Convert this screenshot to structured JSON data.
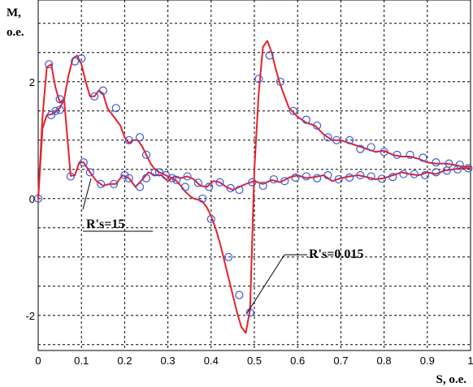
{
  "chart_data": {
    "type": "line",
    "title": "",
    "ylabel_line1": "M,",
    "ylabel_line2": "o.e.",
    "xlabel": "S, o.e.",
    "xlim": [
      0,
      1
    ],
    "ylim": [
      -2.6,
      3.4
    ],
    "grid": true,
    "x_ticks": [
      0,
      0.1,
      0.2,
      0.3,
      0.4,
      0.5,
      0.6,
      0.7,
      0.8,
      0.9,
      1
    ],
    "x_tick_labels": [
      "0",
      "0.1",
      "0.2",
      "0.3",
      "0.4",
      "0.5",
      "0.6",
      "0.7",
      "0.8",
      "0.9",
      "1"
    ],
    "y_ticks": [
      -2,
      0,
      2
    ],
    "y_tick_labels": [
      "-2",
      "0",
      "2"
    ],
    "grid_y": [
      -2.5,
      -1.5,
      -1,
      -0.5,
      0.5,
      1,
      1.5,
      2.5,
      3
    ],
    "series": [
      {
        "name": "R's=15",
        "color": "#e8202a",
        "marker_color": "#3a5bd6",
        "x": [
          0,
          0.01,
          0.02,
          0.035,
          0.05,
          0.06,
          0.075,
          0.085,
          0.095,
          0.105,
          0.12,
          0.135,
          0.15,
          0.165,
          0.18,
          0.195,
          0.21,
          0.225,
          0.24,
          0.255,
          0.27,
          0.285,
          0.3,
          0.315,
          0.33,
          0.345,
          0.36,
          0.375,
          0.39,
          0.405,
          0.42,
          0.435,
          0.45,
          0.465,
          0.48,
          0.5,
          0.52,
          0.54,
          0.56,
          0.58,
          0.6,
          0.62,
          0.64,
          0.66,
          0.68,
          0.7,
          0.72,
          0.74,
          0.76,
          0.78,
          0.8,
          0.82,
          0.84,
          0.86,
          0.88,
          0.9,
          0.92,
          0.94,
          0.96,
          0.98,
          1.0
        ],
        "y": [
          0.0,
          1.2,
          1.43,
          1.45,
          1.55,
          1.7,
          0.39,
          0.4,
          0.62,
          0.62,
          0.45,
          0.3,
          0.22,
          0.25,
          0.25,
          0.4,
          0.35,
          0.2,
          0.32,
          0.45,
          0.4,
          0.4,
          0.3,
          0.38,
          0.35,
          0.38,
          0.33,
          0.22,
          0.2,
          0.3,
          0.28,
          0.2,
          0.15,
          0.2,
          0.25,
          0.3,
          0.25,
          0.32,
          0.28,
          0.36,
          0.4,
          0.35,
          0.37,
          0.4,
          0.3,
          0.35,
          0.38,
          0.4,
          0.37,
          0.33,
          0.35,
          0.4,
          0.45,
          0.42,
          0.4,
          0.45,
          0.42,
          0.48,
          0.5,
          0.52,
          0.52
        ],
        "marker_x": [
          0,
          0.03,
          0.05,
          0.075,
          0.105,
          0.12,
          0.145,
          0.175,
          0.2,
          0.21,
          0.235,
          0.25,
          0.27,
          0.295,
          0.32,
          0.345,
          0.37,
          0.395,
          0.42,
          0.445,
          0.465,
          0.495,
          0.52,
          0.545,
          0.57,
          0.595,
          0.62,
          0.645,
          0.67,
          0.695,
          0.72,
          0.745,
          0.77,
          0.795,
          0.82,
          0.845,
          0.87,
          0.895,
          0.92,
          0.945,
          0.97,
          0.995
        ],
        "marker_y": [
          0.0,
          1.43,
          1.52,
          0.38,
          0.62,
          0.45,
          0.25,
          0.25,
          0.4,
          0.35,
          0.2,
          0.35,
          0.45,
          0.4,
          0.32,
          0.38,
          0.27,
          0.2,
          0.28,
          0.18,
          0.15,
          0.28,
          0.22,
          0.33,
          0.3,
          0.36,
          0.38,
          0.35,
          0.4,
          0.33,
          0.36,
          0.4,
          0.38,
          0.34,
          0.37,
          0.42,
          0.42,
          0.4,
          0.45,
          0.48,
          0.5,
          0.52
        ]
      },
      {
        "name": "R's=0.015",
        "color": "#e8202a",
        "marker_color": "#3a5bd6",
        "x": [
          0,
          0.01,
          0.02,
          0.03,
          0.04,
          0.05,
          0.06,
          0.07,
          0.08,
          0.09,
          0.1,
          0.11,
          0.12,
          0.13,
          0.14,
          0.15,
          0.16,
          0.17,
          0.18,
          0.19,
          0.2,
          0.21,
          0.22,
          0.23,
          0.24,
          0.25,
          0.26,
          0.27,
          0.28,
          0.29,
          0.3,
          0.31,
          0.32,
          0.33,
          0.34,
          0.35,
          0.36,
          0.37,
          0.38,
          0.39,
          0.4,
          0.41,
          0.42,
          0.43,
          0.44,
          0.45,
          0.46,
          0.47,
          0.48,
          0.49,
          0.5,
          0.51,
          0.52,
          0.53,
          0.54,
          0.55,
          0.56,
          0.57,
          0.58,
          0.6,
          0.62,
          0.64,
          0.66,
          0.68,
          0.7,
          0.72,
          0.74,
          0.76,
          0.78,
          0.8,
          0.82,
          0.84,
          0.86,
          0.88,
          0.9,
          0.92,
          0.94,
          0.96,
          0.98,
          1.0
        ],
        "y": [
          0.0,
          1.4,
          2.25,
          2.3,
          1.9,
          1.65,
          1.7,
          2.1,
          2.4,
          2.45,
          2.3,
          2.0,
          1.75,
          1.75,
          1.85,
          1.8,
          1.55,
          1.45,
          1.35,
          1.25,
          1.05,
          0.95,
          1.0,
          1.0,
          0.9,
          0.75,
          0.6,
          0.5,
          0.45,
          0.42,
          0.38,
          0.35,
          0.3,
          0.22,
          0.12,
          0.05,
          0.0,
          -0.02,
          -0.05,
          -0.15,
          -0.3,
          -0.5,
          -0.75,
          -1.05,
          -1.35,
          -1.65,
          -1.95,
          -2.2,
          -2.3,
          -1.9,
          0.5,
          1.8,
          2.6,
          2.7,
          2.5,
          2.2,
          1.95,
          1.75,
          1.55,
          1.4,
          1.3,
          1.25,
          1.1,
          1.0,
          1.0,
          0.95,
          0.9,
          0.85,
          0.8,
          0.82,
          0.75,
          0.72,
          0.72,
          0.68,
          0.62,
          0.6,
          0.6,
          0.58,
          0.55,
          0.55
        ],
        "marker_x": [
          0.025,
          0.04,
          0.05,
          0.085,
          0.1,
          0.13,
          0.15,
          0.18,
          0.21,
          0.235,
          0.25,
          0.28,
          0.31,
          0.34,
          0.38,
          0.4,
          0.44,
          0.465,
          0.49,
          0.51,
          0.535,
          0.56,
          0.59,
          0.62,
          0.645,
          0.67,
          0.69,
          0.72,
          0.745,
          0.77,
          0.8,
          0.83,
          0.86,
          0.89,
          0.92,
          0.95,
          0.975
        ],
        "marker_y": [
          2.3,
          1.5,
          1.7,
          2.35,
          2.4,
          1.75,
          1.85,
          1.55,
          1.0,
          1.05,
          0.75,
          0.45,
          0.35,
          0.2,
          0.0,
          -0.35,
          -1.0,
          -1.65,
          -1.95,
          2.05,
          2.45,
          2.0,
          1.5,
          1.35,
          1.25,
          1.05,
          1.0,
          1.0,
          0.85,
          0.88,
          0.8,
          0.75,
          0.75,
          0.7,
          0.62,
          0.6,
          0.58
        ]
      }
    ],
    "annotations": [
      {
        "text": "R's=15"
      },
      {
        "text": "R's=0.015"
      }
    ]
  }
}
